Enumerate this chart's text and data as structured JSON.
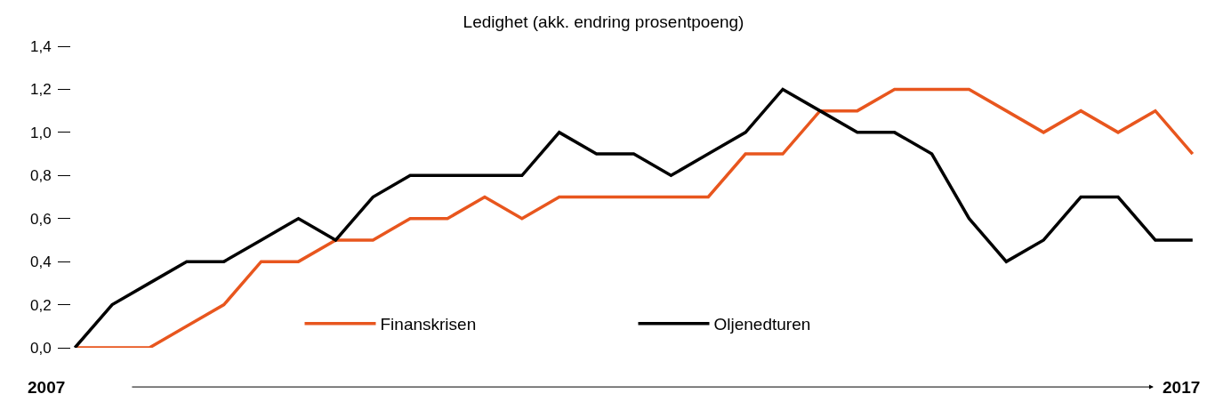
{
  "chart_data": {
    "type": "line",
    "title": "Ledighet (akk. endring prosentpoeng)",
    "categories": [
      null,
      null,
      null,
      null,
      null,
      null,
      null,
      null,
      null,
      null,
      null,
      null,
      null,
      null,
      null,
      null,
      null,
      null,
      null,
      null,
      null,
      null,
      null,
      null,
      null,
      null,
      null,
      null,
      null,
      null,
      null
    ],
    "series": [
      {
        "name": "Finanskrisen",
        "color": "#e8561e",
        "values": [
          0,
          0,
          0,
          0.1,
          0.2,
          0.4,
          0.4,
          0.5,
          0.5,
          0.6,
          0.6,
          0.7,
          0.6,
          0.7,
          0.7,
          0.7,
          0.7,
          0.7,
          0.9,
          0.9,
          1.1,
          1.1,
          1.2,
          1.2,
          1.2,
          1.1,
          1.0,
          1.1,
          1.0,
          1.1,
          0.9
        ]
      },
      {
        "name": "Oljenedturen",
        "color": "#000000",
        "values": [
          0,
          0.2,
          0.3,
          0.4,
          0.4,
          0.5,
          0.6,
          0.5,
          0.7,
          0.8,
          0.8,
          0.8,
          0.8,
          1.0,
          0.9,
          0.9,
          0.8,
          0.9,
          1.0,
          1.2,
          1.1,
          1.0,
          1.0,
          0.9,
          0.6,
          0.4,
          0.5,
          0.7,
          0.7,
          0.5,
          0.5
        ]
      }
    ],
    "ylim": [
      0,
      1.4
    ],
    "yticks": [
      {
        "value": 0,
        "label": "0,0"
      },
      {
        "value": 0.2,
        "label": "0,2"
      },
      {
        "value": 0.4,
        "label": "0,4"
      },
      {
        "value": 0.6,
        "label": "0,6"
      },
      {
        "value": 0.8,
        "label": "0,8"
      },
      {
        "value": 1.0,
        "label": "1,0"
      },
      {
        "value": 1.2,
        "label": "1,2"
      },
      {
        "value": 1.4,
        "label": "1,4"
      }
    ],
    "annotations": [
      "2007",
      "2017"
    ],
    "tick_labels": "y",
    "legend": "bottom",
    "marker": "none",
    "line_style": "solid"
  }
}
